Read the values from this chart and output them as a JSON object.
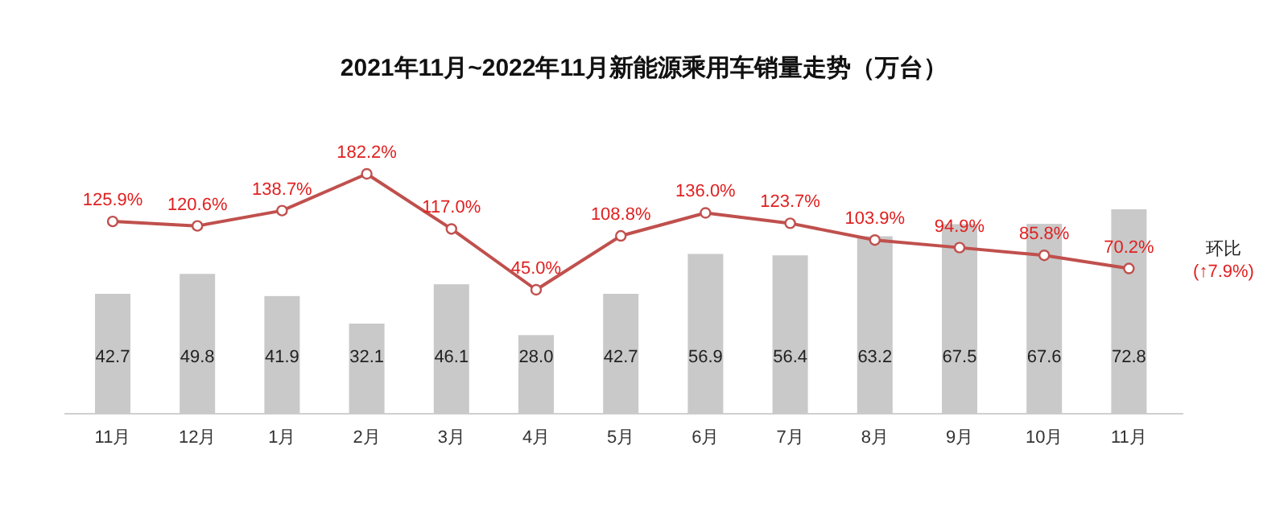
{
  "chart_data": {
    "type": "bar",
    "title": "2021年11月~2022年11月新能源乘用车销量走势（万台）",
    "categories": [
      "11月",
      "12月",
      "1月",
      "2月",
      "3月",
      "4月",
      "5月",
      "6月",
      "7月",
      "8月",
      "9月",
      "10月",
      "11月"
    ],
    "series": [
      {
        "color": "#c9c9c9",
        "values": [
          42.7,
          49.8,
          41.9,
          32.1,
          46.1,
          28.0,
          42.7,
          56.9,
          56.4,
          63.2,
          67.5,
          67.6,
          72.8
        ],
        "value_labels": [
          "42.7",
          "49.8",
          "41.9",
          "32.1",
          "46.1",
          "28.0",
          "42.7",
          "56.9",
          "56.4",
          "63.2",
          "67.5",
          "67.6",
          "72.8"
        ]
      },
      {
        "type": "line",
        "axis": "y2",
        "color": "#c0504d",
        "marker": "circle",
        "values": [
          125.9,
          120.6,
          138.7,
          182.2,
          117.0,
          45.0,
          108.8,
          136.0,
          123.7,
          103.9,
          94.9,
          85.8,
          70.2
        ],
        "value_labels": [
          "125.9%",
          "120.6%",
          "138.7%",
          "182.2%",
          "117.0%",
          "45.0%",
          "108.8%",
          "136.0%",
          "123.7%",
          "103.9%",
          "94.9%",
          "85.8%",
          "70.2%"
        ]
      }
    ],
    "annotations": [
      "环比",
      "(↑7.9%)"
    ]
  }
}
